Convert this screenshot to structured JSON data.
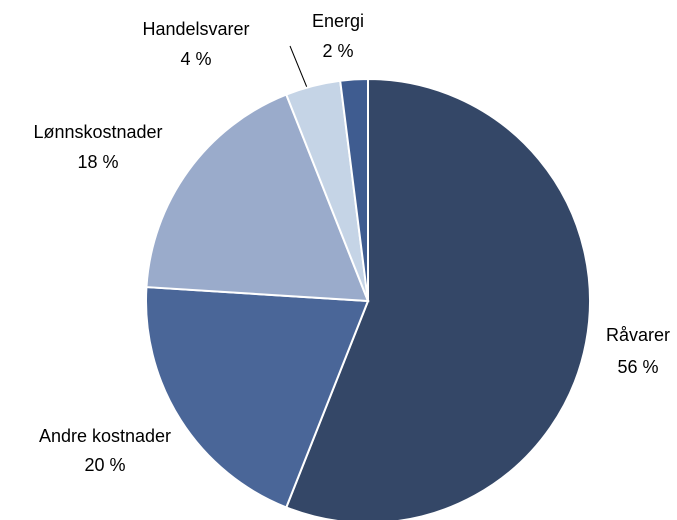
{
  "chart_data": {
    "type": "pie",
    "categories": [
      "Råvarer",
      "Andre kostnader",
      "Lønnskostnader",
      "Handelsvarer",
      "Energi"
    ],
    "values": [
      56,
      20,
      18,
      4,
      2
    ],
    "value_labels": [
      "56 %",
      "20 %",
      "18 %",
      "4 %",
      "2 %"
    ],
    "colors": [
      "#344767",
      "#4a6698",
      "#9aabcb",
      "#c5d4e6",
      "#3f5c90"
    ]
  }
}
